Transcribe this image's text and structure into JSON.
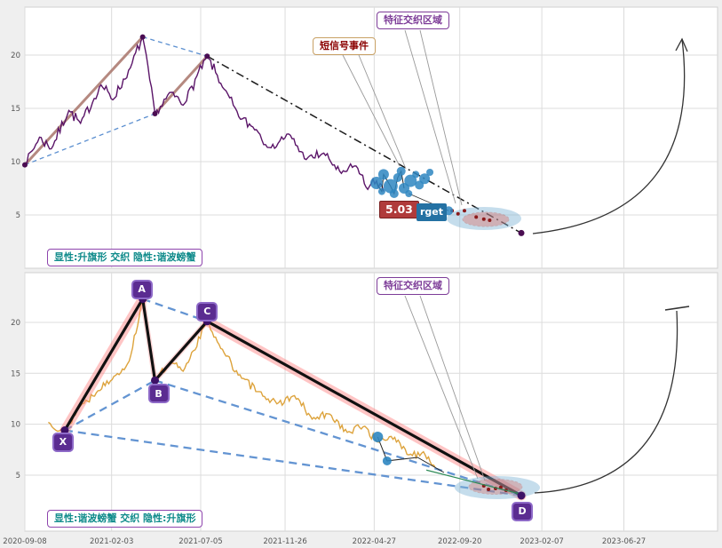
{
  "colors": {
    "background": "#efefef",
    "panel": "#ffffff",
    "grid": "#dcdcdc",
    "price_top": "#5a1468",
    "price_marker": "#4a0d52",
    "price_bottom": "#dda33c",
    "trend_brown": "#a9756b",
    "dashed_blue": "#5b8fd0",
    "dashdot_black": "#1a1a1a",
    "pattern_black": "#111111",
    "pattern_glow": "#ff8080",
    "scatter_blue": "#2e86c1",
    "scatter_red": "#8b1a1a",
    "ellipse_blue": "#7fb3d5",
    "ellipse_red": "#e74c3c",
    "green_line": "#2e8b57",
    "arc": "#333333"
  },
  "axes": {
    "epoch": "2020-09-08",
    "x_tick_labels": [
      "2020-09-08",
      "2021-02-03",
      "2021-07-05",
      "2021-11-26",
      "2022-04-27",
      "2022-09-20",
      "2023-02-07",
      "2023-06-27"
    ],
    "x_tick_days": [
      0,
      148,
      300,
      444,
      596,
      742,
      882,
      1022
    ],
    "y_tick_labels": [
      "5",
      "10",
      "15",
      "20"
    ],
    "y_tick_values": [
      5,
      10,
      15,
      20
    ]
  },
  "top_panel": {
    "annotation_area_label": "特征交织区域",
    "annotation_signal_label": "短信号事件",
    "price_badge": "5.03",
    "target_badge": "rget",
    "caption": "显性:升旗形 交织 隐性:谐波螃蟹"
  },
  "bottom_panel": {
    "annotation_area_label": "特征交织区域",
    "caption": "显性:谐波螃蟹 交织 隐性:升旗形"
  },
  "chart_data": [
    {
      "type": "line",
      "panel": "top",
      "pattern_visible": "升旗形",
      "pattern_hidden": "谐波螃蟹",
      "epoch": "2020-09-08",
      "x_units": "days_from_epoch",
      "ylim": [
        1.5,
        23.5
      ],
      "price_pivots_dv": [
        [
          0,
          9.7
        ],
        [
          25,
          12.3
        ],
        [
          45,
          11.2
        ],
        [
          75,
          14.8
        ],
        [
          95,
          13.6
        ],
        [
          130,
          17.2
        ],
        [
          150,
          15.8
        ],
        [
          180,
          18.8
        ],
        [
          201,
          21.7
        ],
        [
          222,
          14.5
        ],
        [
          250,
          16.5
        ],
        [
          270,
          15.3
        ],
        [
          311,
          19.9
        ],
        [
          340,
          16.8
        ],
        [
          365,
          14.2
        ],
        [
          395,
          13.0
        ],
        [
          420,
          11.3
        ],
        [
          450,
          12.6
        ],
        [
          480,
          10.2
        ],
        [
          510,
          10.8
        ],
        [
          540,
          8.9
        ],
        [
          565,
          9.6
        ],
        [
          585,
          7.4
        ],
        [
          600,
          8.2
        ],
        [
          612,
          7.2
        ]
      ],
      "marker_pivots_dv": [
        [
          0,
          9.7
        ],
        [
          201,
          21.7
        ],
        [
          222,
          14.5
        ],
        [
          311,
          19.9
        ]
      ],
      "end_point_dv": [
        847,
        3.3
      ],
      "trend_lines_dv": [
        [
          [
            0,
            9.7
          ],
          [
            201,
            21.7
          ]
        ],
        [
          [
            222,
            14.5
          ],
          [
            311,
            19.9
          ]
        ]
      ],
      "flag_dashed_dv": [
        [
          [
            0,
            9.7
          ],
          [
            222,
            14.5
          ]
        ],
        [
          [
            201,
            21.7
          ],
          [
            311,
            19.9
          ]
        ]
      ],
      "trendline_dashdot_dv": [
        [
          311,
          19.9
        ],
        [
          847,
          3.3
        ]
      ],
      "signal_cluster_dvr": [
        [
          600,
          8.0,
          7
        ],
        [
          609,
          7.2,
          4
        ],
        [
          612,
          8.8,
          6
        ],
        [
          624,
          7.7,
          8
        ],
        [
          630,
          7.0,
          5
        ],
        [
          636,
          8.5,
          5
        ],
        [
          642,
          9.1,
          5
        ],
        [
          647,
          7.5,
          6
        ],
        [
          655,
          7.0,
          4
        ],
        [
          658,
          8.2,
          7
        ],
        [
          667,
          8.8,
          4
        ],
        [
          673,
          7.8,
          5
        ],
        [
          682,
          8.4,
          6
        ],
        [
          691,
          9.0,
          4
        ],
        [
          723,
          5.4,
          5
        ]
      ],
      "red_dots_dv": [
        [
          715,
          5.8
        ],
        [
          729,
          5.4
        ],
        [
          739,
          5.1
        ],
        [
          750,
          5.4
        ],
        [
          770,
          4.8
        ],
        [
          783,
          4.6
        ],
        [
          793,
          4.5
        ]
      ]
    },
    {
      "type": "line",
      "panel": "bottom",
      "pattern_visible": "谐波螃蟹",
      "pattern_hidden": "升旗形",
      "epoch": "2020-09-08",
      "x_units": "days_from_epoch",
      "ylim": [
        1.5,
        24
      ],
      "price_pivots_dv": [
        [
          40,
          10.2
        ],
        [
          68,
          9.4
        ],
        [
          95,
          11.8
        ],
        [
          125,
          13.3
        ],
        [
          155,
          14.8
        ],
        [
          178,
          16.2
        ],
        [
          201,
          22.3
        ],
        [
          222,
          14.3
        ],
        [
          250,
          16.0
        ],
        [
          270,
          15.2
        ],
        [
          311,
          20.1
        ],
        [
          340,
          17.0
        ],
        [
          370,
          14.5
        ],
        [
          400,
          13.2
        ],
        [
          430,
          12.0
        ],
        [
          460,
          12.8
        ],
        [
          490,
          10.5
        ],
        [
          520,
          11.0
        ],
        [
          550,
          9.2
        ],
        [
          580,
          9.8
        ],
        [
          600,
          8.3
        ],
        [
          625,
          8.8
        ],
        [
          655,
          7.0
        ],
        [
          680,
          7.3
        ],
        [
          700,
          5.8
        ]
      ],
      "pattern_points": [
        {
          "label": "X",
          "d": 68,
          "v": 9.4
        },
        {
          "label": "A",
          "d": 201,
          "v": 22.3
        },
        {
          "label": "B",
          "d": 222,
          "v": 14.3
        },
        {
          "label": "C",
          "d": 311,
          "v": 20.1
        },
        {
          "label": "D",
          "d": 847,
          "v": 3.0
        }
      ],
      "pattern_segments": [
        [
          "X",
          "A"
        ],
        [
          "A",
          "B"
        ],
        [
          "B",
          "C"
        ],
        [
          "C",
          "D"
        ]
      ],
      "dashed_segments": [
        [
          "X",
          "B"
        ],
        [
          "A",
          "C"
        ],
        [
          "B",
          "D"
        ],
        [
          "X",
          "D"
        ]
      ],
      "signal_dots_dvr": [
        [
          602,
          8.75,
          6
        ],
        [
          618,
          6.4,
          5
        ]
      ],
      "signal_polyline_dv": [
        [
          602,
          8.75
        ],
        [
          618,
          6.4
        ],
        [
          670,
          6.74
        ],
        [
          715,
          5.26
        ]
      ],
      "green_line_dv": [
        [
          685,
          5.5
        ],
        [
          845,
          3.15
        ]
      ],
      "red_dots_dv": [
        [
          783,
          3.95
        ],
        [
          791,
          3.6
        ],
        [
          803,
          3.69
        ],
        [
          812,
          3.8
        ],
        [
          821,
          3.52
        ]
      ]
    }
  ]
}
